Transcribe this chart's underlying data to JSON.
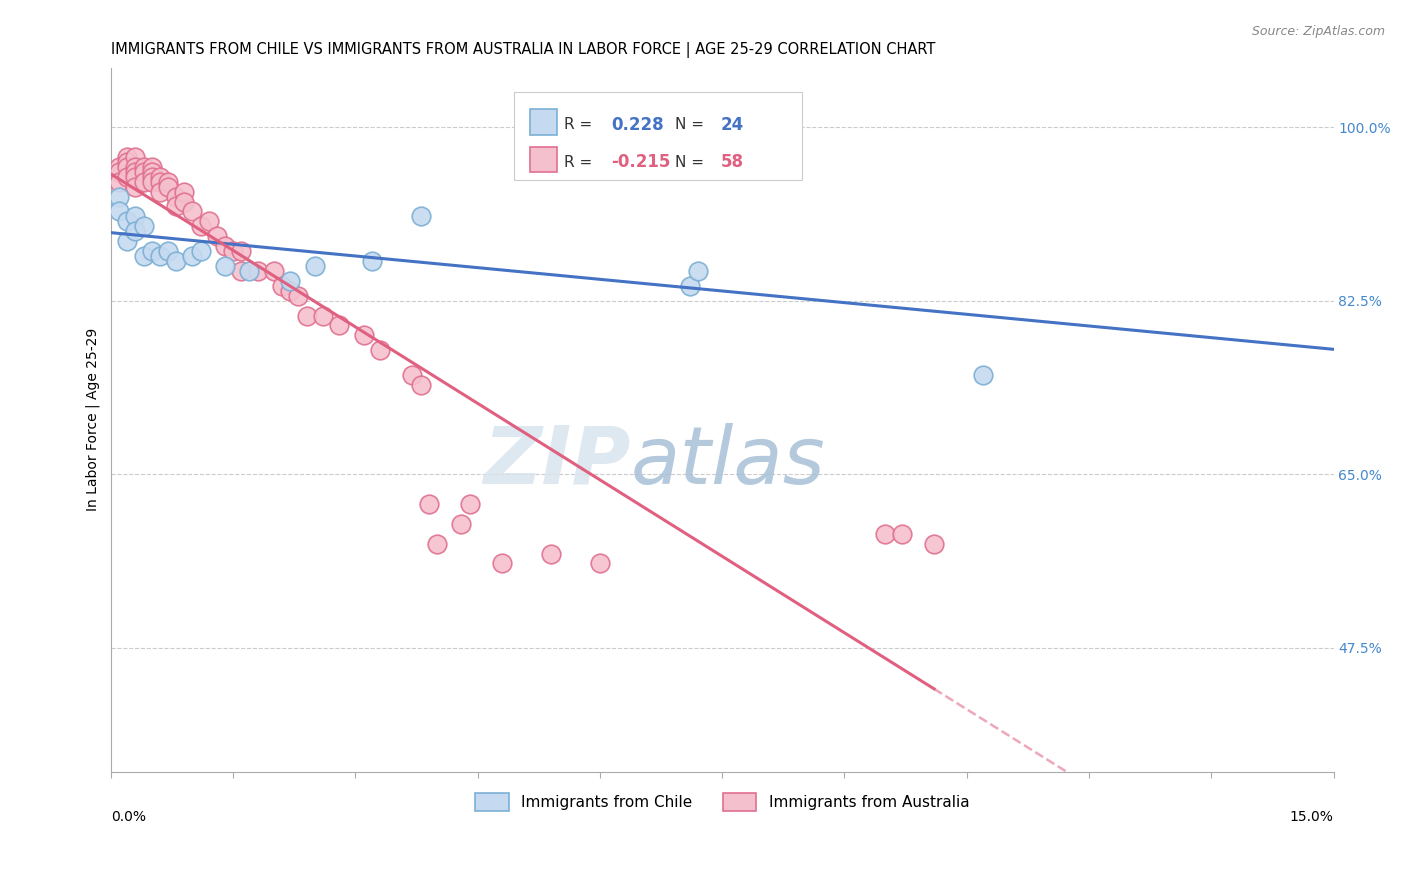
{
  "title": "IMMIGRANTS FROM CHILE VS IMMIGRANTS FROM AUSTRALIA IN LABOR FORCE | AGE 25-29 CORRELATION CHART",
  "source": "Source: ZipAtlas.com",
  "ylabel": "In Labor Force | Age 25-29",
  "ytick_labels": [
    "47.5%",
    "65.0%",
    "82.5%",
    "100.0%"
  ],
  "ytick_vals": [
    0.475,
    0.65,
    0.825,
    1.0
  ],
  "xmin": 0.0,
  "xmax": 0.15,
  "ymin": 0.35,
  "ymax": 1.06,
  "chile_color": "#7bafd4",
  "chile_fill": "#c5daf0",
  "australia_color": "#e07090",
  "australia_fill": "#f5c0ce",
  "chile_line_color": "#4472c4",
  "australia_line_color": "#e06080",
  "chile_points_x": [
    0.001,
    0.001,
    0.002,
    0.002,
    0.003,
    0.003,
    0.004,
    0.004,
    0.005,
    0.006,
    0.007,
    0.008,
    0.01,
    0.011,
    0.014,
    0.017,
    0.022,
    0.025,
    0.032,
    0.038,
    0.053,
    0.071,
    0.072,
    0.107
  ],
  "chile_points_y": [
    0.93,
    0.915,
    0.905,
    0.885,
    0.91,
    0.895,
    0.9,
    0.87,
    0.875,
    0.87,
    0.875,
    0.865,
    0.87,
    0.875,
    0.86,
    0.855,
    0.845,
    0.86,
    0.865,
    0.91,
    0.96,
    0.84,
    0.855,
    0.75
  ],
  "australia_points_x": [
    0.001,
    0.001,
    0.001,
    0.002,
    0.002,
    0.002,
    0.002,
    0.003,
    0.003,
    0.003,
    0.003,
    0.003,
    0.004,
    0.004,
    0.004,
    0.005,
    0.005,
    0.005,
    0.005,
    0.006,
    0.006,
    0.006,
    0.007,
    0.007,
    0.008,
    0.008,
    0.009,
    0.009,
    0.01,
    0.011,
    0.012,
    0.013,
    0.014,
    0.015,
    0.016,
    0.016,
    0.018,
    0.02,
    0.021,
    0.022,
    0.023,
    0.024,
    0.026,
    0.028,
    0.031,
    0.033,
    0.037,
    0.038,
    0.039,
    0.04,
    0.043,
    0.044,
    0.048,
    0.054,
    0.06,
    0.095,
    0.097,
    0.101
  ],
  "australia_points_y": [
    0.96,
    0.955,
    0.945,
    0.97,
    0.965,
    0.96,
    0.95,
    0.97,
    0.96,
    0.955,
    0.95,
    0.94,
    0.96,
    0.955,
    0.945,
    0.96,
    0.955,
    0.95,
    0.945,
    0.95,
    0.945,
    0.935,
    0.945,
    0.94,
    0.93,
    0.92,
    0.935,
    0.925,
    0.915,
    0.9,
    0.905,
    0.89,
    0.88,
    0.875,
    0.875,
    0.855,
    0.855,
    0.855,
    0.84,
    0.835,
    0.83,
    0.81,
    0.81,
    0.8,
    0.79,
    0.775,
    0.75,
    0.74,
    0.62,
    0.58,
    0.6,
    0.62,
    0.56,
    0.57,
    0.56,
    0.59,
    0.59,
    0.58
  ]
}
